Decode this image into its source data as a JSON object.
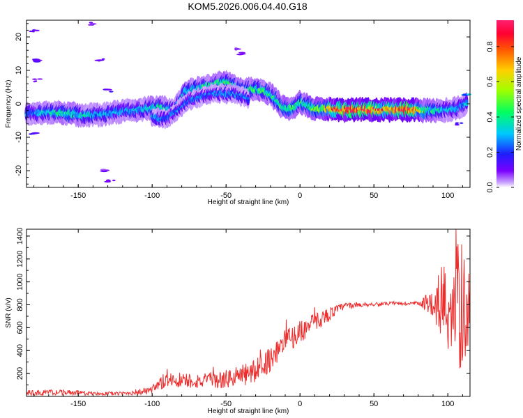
{
  "title": "KOM5.2026.006.04.40.G18",
  "colors": {
    "snr_line": "#ee2c2c",
    "axis": "#000000",
    "background": "#ffffff"
  },
  "chart_data": [
    {
      "type": "heatmap",
      "name": "spectrogram",
      "xlabel": "Height of straight line (km)",
      "ylabel": "Frequency (Hz)",
      "xlim": [
        -185,
        115
      ],
      "ylim": [
        -25,
        25
      ],
      "x_ticks": [
        -150,
        -100,
        -50,
        0,
        50,
        100
      ],
      "y_ticks": [
        -20,
        -10,
        0,
        10,
        20
      ],
      "colorbar": {
        "label": "Normalized spectral amplitude",
        "range": [
          0,
          0.95
        ],
        "ticks": [
          0.0,
          0.2,
          0.4,
          0.6,
          0.8
        ],
        "colormap": "rainbow (violet=0 to red/pink=0.95)"
      },
      "ridge": {
        "description": "dominant Doppler frequency ridge vs height",
        "points": [
          {
            "x": -185,
            "y": -3,
            "amp": 0.25
          },
          {
            "x": -170,
            "y": -2.5,
            "amp": 0.35
          },
          {
            "x": -155,
            "y": -3,
            "amp": 0.4
          },
          {
            "x": -145,
            "y": -3.5,
            "amp": 0.35
          },
          {
            "x": -130,
            "y": -3,
            "amp": 0.3
          },
          {
            "x": -115,
            "y": -2,
            "amp": 0.3
          },
          {
            "x": -105,
            "y": -1.5,
            "amp": 0.35
          },
          {
            "x": -95,
            "y": -1,
            "amp": 0.4
          },
          {
            "x": -85,
            "y": -2,
            "amp": 0.3
          },
          {
            "x": -78,
            "y": 3.5,
            "amp": 0.35
          },
          {
            "x": -65,
            "y": 5,
            "amp": 0.4
          },
          {
            "x": -50,
            "y": 6.5,
            "amp": 0.45
          },
          {
            "x": -40,
            "y": 4,
            "amp": 0.4
          },
          {
            "x": -30,
            "y": 4.5,
            "amp": 0.45
          },
          {
            "x": -20,
            "y": 3,
            "amp": 0.4
          },
          {
            "x": -12,
            "y": -1,
            "amp": 0.45
          },
          {
            "x": -5,
            "y": -1.5,
            "amp": 0.45
          },
          {
            "x": 0,
            "y": 0.5,
            "amp": 0.4
          },
          {
            "x": 10,
            "y": -1.5,
            "amp": 0.5
          },
          {
            "x": 20,
            "y": -1.5,
            "amp": 0.7
          },
          {
            "x": 30,
            "y": -1.8,
            "amp": 0.88
          },
          {
            "x": 45,
            "y": -1.8,
            "amp": 0.92
          },
          {
            "x": 55,
            "y": -1.8,
            "amp": 0.75
          },
          {
            "x": 65,
            "y": -1.8,
            "amp": 0.85
          },
          {
            "x": 75,
            "y": -1.8,
            "amp": 0.9
          },
          {
            "x": 85,
            "y": -2,
            "amp": 0.45
          },
          {
            "x": 95,
            "y": -2,
            "amp": 0.35
          },
          {
            "x": 105,
            "y": -1.5,
            "amp": 0.3
          },
          {
            "x": 113,
            "y": 0,
            "amp": 0.3
          }
        ],
        "secondary_ridge": [
          {
            "x": -100,
            "y": -4,
            "amp": 0.35
          },
          {
            "x": -90,
            "y": -4.5,
            "amp": 0.3
          },
          {
            "x": -75,
            "y": 1,
            "amp": 0.3
          },
          {
            "x": -60,
            "y": 3,
            "amp": 0.3
          },
          {
            "x": -45,
            "y": 3,
            "amp": 0.35
          },
          {
            "x": -35,
            "y": 1.5,
            "amp": 0.3
          }
        ]
      },
      "scattered_features": [
        {
          "x": -180,
          "y": 22,
          "amp": 0.12
        },
        {
          "x": -178,
          "y": 13,
          "amp": 0.12
        },
        {
          "x": -180,
          "y": -9,
          "amp": 0.15
        },
        {
          "x": -178,
          "y": 7,
          "amp": 0.1
        },
        {
          "x": -140,
          "y": 24,
          "amp": 0.1
        },
        {
          "x": -135,
          "y": 13,
          "amp": 0.1
        },
        {
          "x": -130,
          "y": 4,
          "amp": 0.15
        },
        {
          "x": -132,
          "y": -20,
          "amp": 0.1
        },
        {
          "x": -128,
          "y": -23,
          "amp": 0.1
        },
        {
          "x": -40,
          "y": 15,
          "amp": 0.1
        },
        {
          "x": -42,
          "y": 16.5,
          "amp": 0.1
        },
        {
          "x": 108,
          "y": -6,
          "amp": 0.15
        },
        {
          "x": 112,
          "y": 2.5,
          "amp": 0.3
        }
      ]
    },
    {
      "type": "line",
      "name": "snr",
      "xlabel": "Height of straight line (km)",
      "ylabel": "SNR (v/v)",
      "xlim": [
        -185,
        115
      ],
      "ylim": [
        0,
        1460
      ],
      "x_ticks": [
        -150,
        -100,
        -50,
        0,
        50,
        100
      ],
      "y_ticks": [
        200,
        400,
        600,
        800,
        1000,
        1200,
        1400
      ],
      "envelope": {
        "description": "SNR trend vs height (noisy trace around this envelope)",
        "x": [
          -185,
          -160,
          -140,
          -120,
          -100,
          -90,
          -75,
          -60,
          -50,
          -40,
          -30,
          -20,
          -10,
          0,
          10,
          20,
          30,
          40,
          60,
          80,
          90,
          95,
          100,
          105,
          110,
          115
        ],
        "value": [
          30,
          35,
          25,
          25,
          50,
          150,
          140,
          130,
          150,
          180,
          220,
          330,
          480,
          560,
          650,
          720,
          790,
          800,
          810,
          810,
          820,
          830,
          800,
          780,
          760,
          800
        ],
        "jitter": [
          25,
          25,
          15,
          15,
          40,
          80,
          70,
          70,
          80,
          100,
          110,
          110,
          110,
          100,
          80,
          60,
          30,
          20,
          15,
          20,
          120,
          350,
          450,
          550,
          600,
          250
        ]
      }
    }
  ]
}
